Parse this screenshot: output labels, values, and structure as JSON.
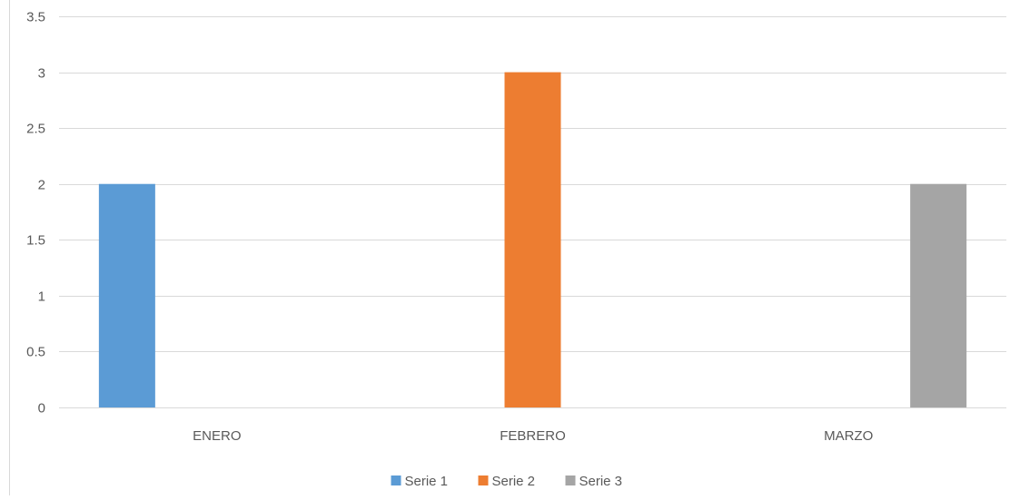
{
  "chart_data": {
    "type": "bar",
    "categories": [
      "ENERO",
      "FEBRERO",
      "MARZO"
    ],
    "series": [
      {
        "name": "Serie 1",
        "values": [
          2,
          null,
          null
        ],
        "color": "#5b9bd5"
      },
      {
        "name": "Serie 2",
        "values": [
          null,
          3,
          null
        ],
        "color": "#ed7d31"
      },
      {
        "name": "Serie 3",
        "values": [
          null,
          null,
          2
        ],
        "color": "#a5a5a5"
      }
    ],
    "yticks": [
      "0",
      "0.5",
      "1",
      "1.5",
      "2",
      "2.5",
      "3",
      "3.5"
    ],
    "ylim": [
      0,
      3.5
    ],
    "grid": true,
    "legend_position": "bottom",
    "gridline_color": "#d9d9d9"
  }
}
